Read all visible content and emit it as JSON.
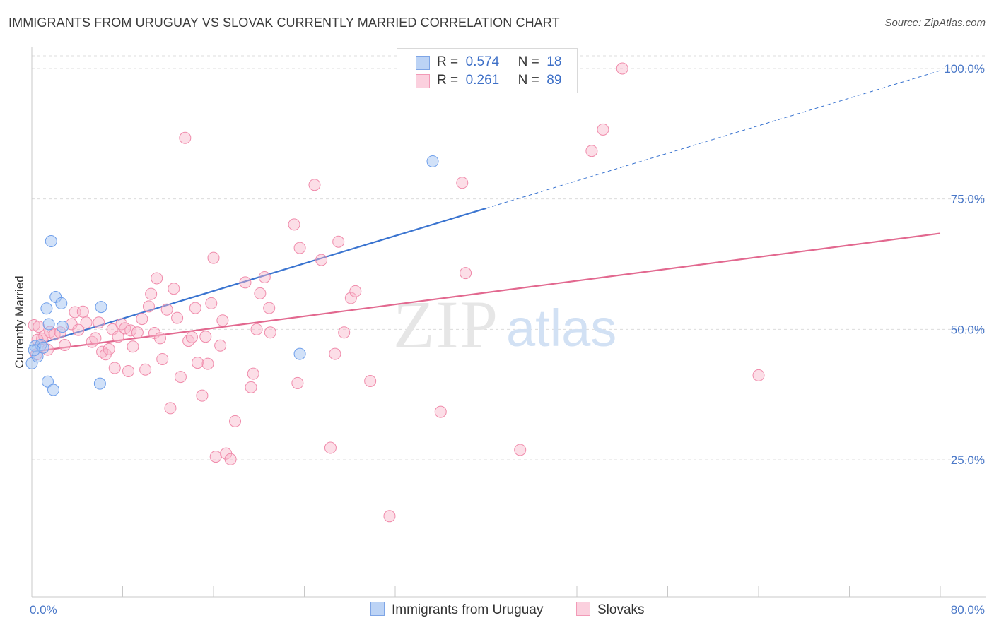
{
  "title": "IMMIGRANTS FROM URUGUAY VS SLOVAK CURRENTLY MARRIED CORRELATION CHART",
  "source": "Source: ZipAtlas.com",
  "watermark": {
    "zip": "ZIP",
    "atlas": "atlas"
  },
  "legend": {
    "rows": [
      {
        "r_label": "R =",
        "r_value": "0.574",
        "n_label": "N =",
        "n_value": "18"
      },
      {
        "r_label": "R =",
        "r_value": "0.261",
        "n_label": "N =",
        "n_value": "89"
      }
    ]
  },
  "bottom_legend": {
    "series1": "Immigrants from Uruguay",
    "series2": "Slovaks"
  },
  "chart_data": {
    "type": "scatter",
    "title": "IMMIGRANTS FROM URUGUAY VS SLOVAK CURRENTLY MARRIED CORRELATION CHART",
    "xlabel": "",
    "ylabel": "Currently Married",
    "xlim": [
      0,
      80
    ],
    "ylim": [
      0,
      102
    ],
    "x_tick_labels": [
      "0.0%",
      "80.0%"
    ],
    "y_ticks": [
      25,
      50,
      75,
      100
    ],
    "y_tick_labels": [
      "25.0%",
      "50.0%",
      "75.0%",
      "100.0%"
    ],
    "grid": true,
    "legend_position": "top-center",
    "colors": {
      "uruguay": "#6d9eeb",
      "slovaks": "#f08bab",
      "uruguay_line": "#3a74d0",
      "slovaks_line": "#e2688f"
    },
    "series": [
      {
        "name": "Immigrants from Uruguay",
        "R": 0.574,
        "N": 18,
        "points": [
          [
            0.0,
            43.5
          ],
          [
            0.3,
            46.8
          ],
          [
            0.5,
            44.8
          ],
          [
            0.8,
            47.0
          ],
          [
            1.0,
            46.5
          ],
          [
            1.3,
            54.0
          ],
          [
            1.4,
            40.0
          ],
          [
            1.5,
            51.0
          ],
          [
            1.7,
            66.9
          ],
          [
            1.9,
            38.4
          ],
          [
            2.1,
            56.2
          ],
          [
            2.6,
            55.0
          ],
          [
            2.7,
            50.5
          ],
          [
            6.0,
            39.6
          ],
          [
            6.1,
            54.3
          ],
          [
            23.6,
            45.3
          ],
          [
            35.3,
            82.2
          ],
          [
            0.2,
            46.0
          ]
        ],
        "trend": {
          "x1": 0,
          "y1": 46.8,
          "x2": 40,
          "y2": 73.2,
          "x2_dashed": 80,
          "y2_dashed": 99.6
        }
      },
      {
        "name": "Slovaks",
        "R": 0.261,
        "N": 89,
        "points": [
          [
            0.2,
            50.8
          ],
          [
            0.4,
            45.2
          ],
          [
            0.6,
            50.5
          ],
          [
            0.9,
            48.2
          ],
          [
            1.1,
            48.7
          ],
          [
            1.4,
            46.1
          ],
          [
            1.6,
            49.5
          ],
          [
            2.0,
            49.0
          ],
          [
            2.5,
            49.4
          ],
          [
            2.9,
            47.0
          ],
          [
            3.5,
            51.0
          ],
          [
            3.8,
            53.3
          ],
          [
            4.1,
            49.9
          ],
          [
            4.5,
            53.4
          ],
          [
            4.8,
            51.3
          ],
          [
            5.3,
            47.6
          ],
          [
            5.6,
            48.3
          ],
          [
            5.9,
            51.3
          ],
          [
            6.2,
            45.7
          ],
          [
            6.5,
            45.2
          ],
          [
            6.8,
            46.2
          ],
          [
            7.1,
            50.0
          ],
          [
            7.3,
            42.6
          ],
          [
            7.6,
            48.6
          ],
          [
            7.9,
            51.0
          ],
          [
            8.2,
            50.2
          ],
          [
            8.5,
            42.0
          ],
          [
            8.7,
            49.8
          ],
          [
            8.9,
            46.7
          ],
          [
            9.3,
            49.4
          ],
          [
            9.7,
            52.0
          ],
          [
            10.0,
            42.3
          ],
          [
            10.3,
            54.4
          ],
          [
            10.5,
            56.8
          ],
          [
            10.8,
            49.3
          ],
          [
            11.0,
            59.8
          ],
          [
            11.3,
            48.3
          ],
          [
            11.5,
            44.3
          ],
          [
            11.9,
            53.8
          ],
          [
            12.2,
            34.9
          ],
          [
            12.5,
            57.8
          ],
          [
            12.8,
            52.2
          ],
          [
            13.1,
            40.9
          ],
          [
            13.5,
            86.7
          ],
          [
            13.8,
            47.8
          ],
          [
            14.1,
            48.5
          ],
          [
            14.4,
            54.1
          ],
          [
            14.6,
            43.6
          ],
          [
            15.0,
            37.3
          ],
          [
            15.3,
            48.6
          ],
          [
            15.5,
            43.4
          ],
          [
            15.8,
            55.0
          ],
          [
            16.0,
            63.7
          ],
          [
            16.2,
            25.6
          ],
          [
            16.6,
            46.9
          ],
          [
            16.8,
            51.7
          ],
          [
            17.1,
            26.2
          ],
          [
            17.5,
            25.1
          ],
          [
            17.9,
            32.4
          ],
          [
            18.8,
            59.0
          ],
          [
            19.3,
            38.9
          ],
          [
            19.5,
            41.5
          ],
          [
            19.8,
            50.0
          ],
          [
            20.1,
            56.9
          ],
          [
            20.5,
            60.0
          ],
          [
            20.9,
            54.1
          ],
          [
            21.0,
            49.4
          ],
          [
            23.1,
            70.1
          ],
          [
            23.4,
            39.7
          ],
          [
            23.6,
            65.6
          ],
          [
            24.9,
            77.7
          ],
          [
            25.5,
            63.3
          ],
          [
            26.3,
            27.3
          ],
          [
            26.7,
            45.3
          ],
          [
            27.0,
            66.8
          ],
          [
            27.5,
            49.4
          ],
          [
            28.1,
            56.0
          ],
          [
            28.5,
            57.3
          ],
          [
            29.8,
            40.1
          ],
          [
            31.5,
            14.2
          ],
          [
            36.0,
            34.2
          ],
          [
            37.9,
            78.1
          ],
          [
            38.2,
            60.8
          ],
          [
            43.0,
            26.9
          ],
          [
            49.3,
            84.2
          ],
          [
            50.3,
            88.3
          ],
          [
            52.0,
            100.0
          ],
          [
            64.0,
            41.2
          ],
          [
            0.5,
            48.0
          ]
        ],
        "trend": {
          "x1": 0,
          "y1": 45.7,
          "x2": 80,
          "y2": 68.4
        }
      }
    ]
  }
}
